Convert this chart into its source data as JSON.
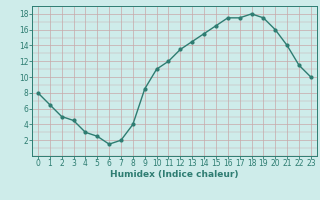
{
  "x": [
    0,
    1,
    2,
    3,
    4,
    5,
    6,
    7,
    8,
    9,
    10,
    11,
    12,
    13,
    14,
    15,
    16,
    17,
    18,
    19,
    20,
    21,
    22,
    23
  ],
  "y": [
    8,
    6.5,
    5,
    4.5,
    3,
    2.5,
    1.5,
    2,
    4,
    8.5,
    11,
    12,
    13.5,
    14.5,
    15.5,
    16.5,
    17.5,
    17.5,
    18,
    17.5,
    16,
    14,
    11.5,
    10
  ],
  "line_color": "#2e7d72",
  "marker_color": "#2e7d72",
  "bg_color": "#ceecea",
  "grid_color_v": "#c8a8a8",
  "grid_color_h": "#c8a8a8",
  "xlabel": "Humidex (Indice chaleur)",
  "xlabel_fontsize": 6.5,
  "tick_fontsize": 5.5,
  "ylim": [
    0,
    19
  ],
  "xlim": [
    -0.5,
    23.5
  ],
  "yticks": [
    2,
    4,
    6,
    8,
    10,
    12,
    14,
    16,
    18
  ],
  "xticks": [
    0,
    1,
    2,
    3,
    4,
    5,
    6,
    7,
    8,
    9,
    10,
    11,
    12,
    13,
    14,
    15,
    16,
    17,
    18,
    19,
    20,
    21,
    22,
    23
  ]
}
